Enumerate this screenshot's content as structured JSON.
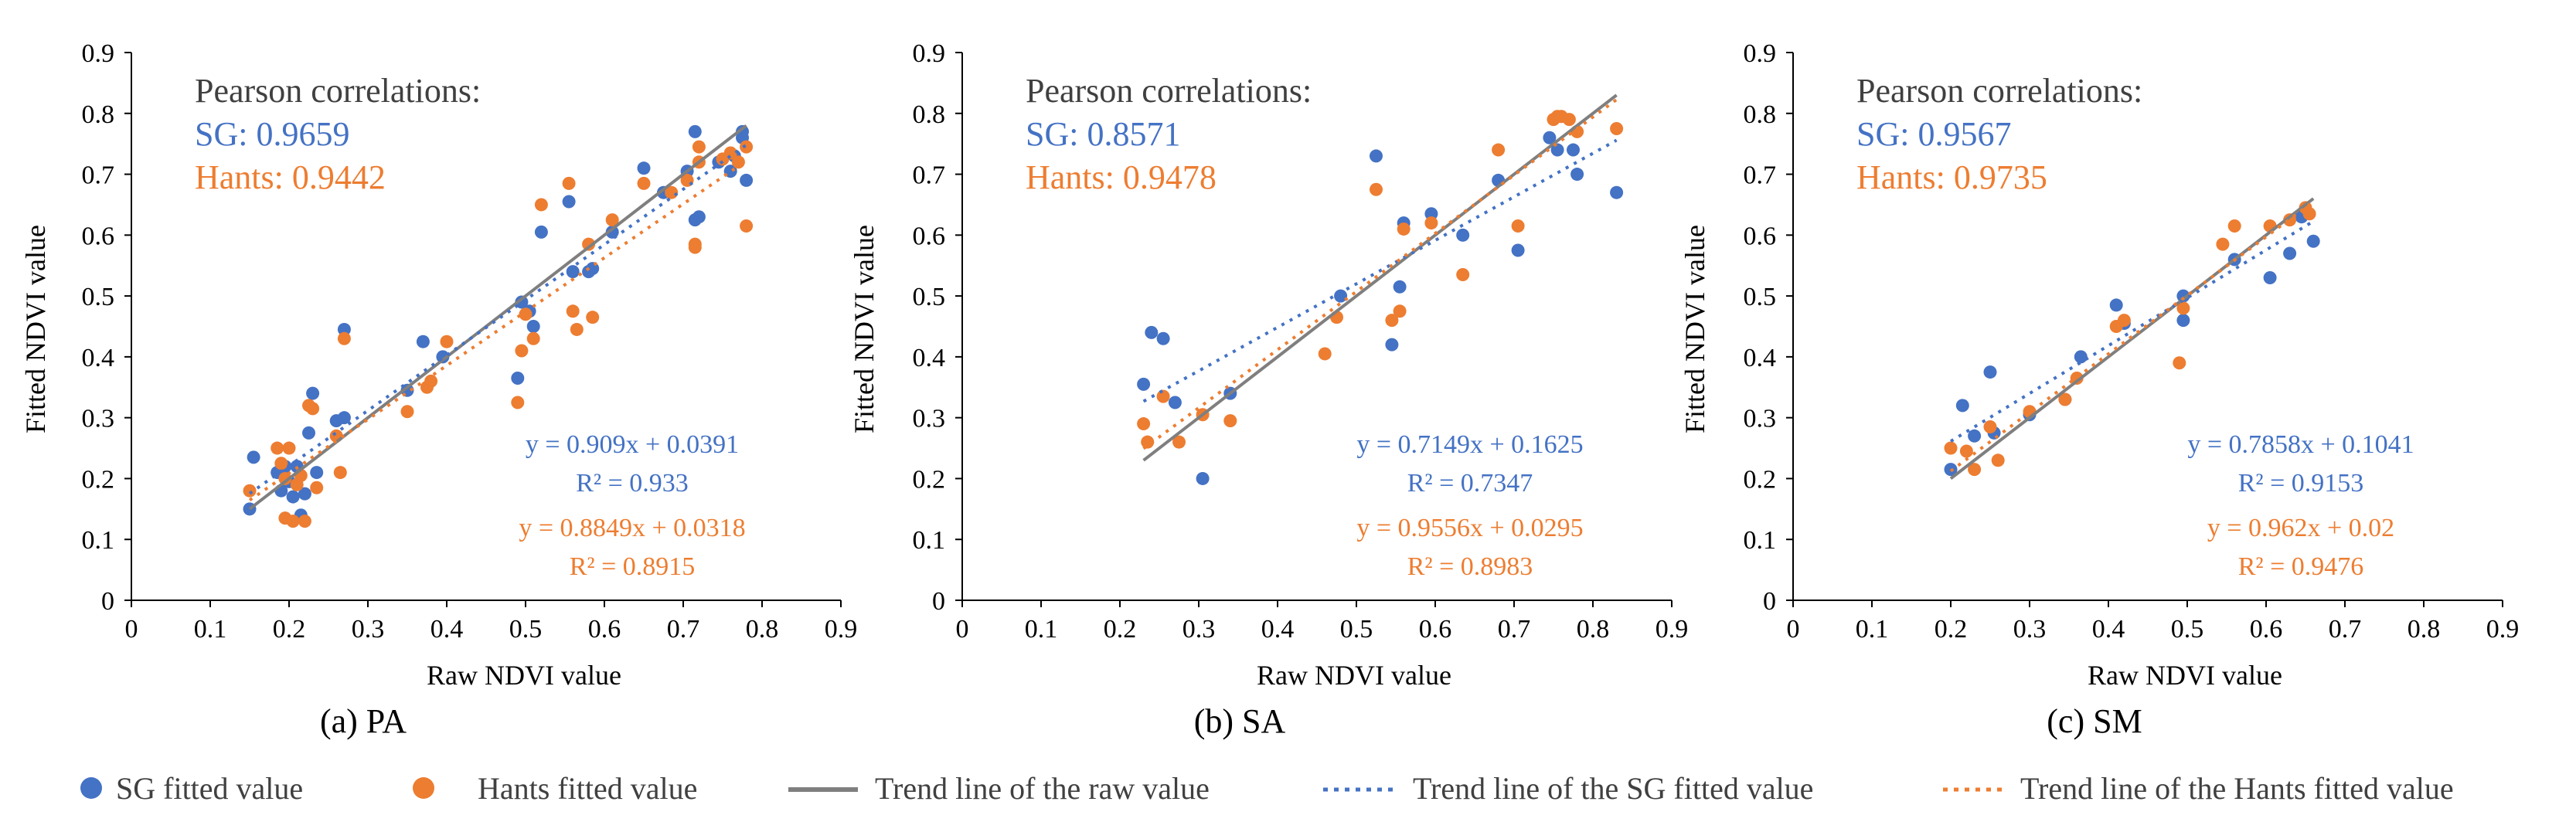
{
  "colors": {
    "sg": "#4472C4",
    "hants": "#ED7D31",
    "raw": "#7F7F7F",
    "axis": "#000000"
  },
  "legend": {
    "sg_point": "SG fitted value",
    "hants_point": "Hants fitted value",
    "raw_trend": "Trend line of the raw value",
    "sg_trend": "Trend line of the SG fitted value",
    "hants_trend": "Trend line of the Hants fitted value"
  },
  "chart_data": [
    {
      "type": "scatter",
      "title": "(a) PA",
      "xlabel": "Raw NDVI value",
      "ylabel": "Fitted NDVI value",
      "xlim": [
        0,
        0.9
      ],
      "ylim": [
        0,
        0.9
      ],
      "x_ticks": [
        "0",
        "0.1",
        "0.2",
        "0.3",
        "0.4",
        "0.5",
        "0.6",
        "0.7",
        "0.8",
        "0.9"
      ],
      "y_ticks": [
        "0",
        "0.1",
        "0.2",
        "0.3",
        "0.4",
        "0.5",
        "0.6",
        "0.7",
        "0.8",
        "0.9"
      ],
      "pearson_title": "Pearson correlations:",
      "pearson_sg": "SG: 0.9659",
      "pearson_hants": "Hants: 0.9442",
      "sg_eq": "y = 0.909x + 0.0391",
      "sg_r2": "R² = 0.933",
      "hants_eq": "y = 0.8849x + 0.0318",
      "hants_r2": "R² = 0.8915",
      "sg_trend": {
        "slope": 0.909,
        "intercept": 0.0391
      },
      "hants_trend": {
        "slope": 0.8849,
        "intercept": 0.0318
      },
      "raw_trend": {
        "slope": 1,
        "intercept": 0
      },
      "x_range": [
        0.15,
        0.78
      ],
      "series": [
        {
          "name": "SG fitted value",
          "points": [
            [
              0.15,
              0.15
            ],
            [
              0.155,
              0.235
            ],
            [
              0.185,
              0.21
            ],
            [
              0.19,
              0.18
            ],
            [
              0.195,
              0.22
            ],
            [
              0.2,
              0.195
            ],
            [
              0.205,
              0.17
            ],
            [
              0.21,
              0.22
            ],
            [
              0.215,
              0.14
            ],
            [
              0.22,
              0.175
            ],
            [
              0.225,
              0.275
            ],
            [
              0.23,
              0.34
            ],
            [
              0.235,
              0.21
            ],
            [
              0.26,
              0.295
            ],
            [
              0.27,
              0.3
            ],
            [
              0.27,
              0.445
            ],
            [
              0.35,
              0.345
            ],
            [
              0.37,
              0.425
            ],
            [
              0.395,
              0.4
            ],
            [
              0.49,
              0.365
            ],
            [
              0.495,
              0.49
            ],
            [
              0.505,
              0.475
            ],
            [
              0.51,
              0.45
            ],
            [
              0.52,
              0.605
            ],
            [
              0.555,
              0.655
            ],
            [
              0.56,
              0.54
            ],
            [
              0.58,
              0.54
            ],
            [
              0.585,
              0.545
            ],
            [
              0.61,
              0.605
            ],
            [
              0.65,
              0.71
            ],
            [
              0.675,
              0.67
            ],
            [
              0.705,
              0.705
            ],
            [
              0.715,
              0.625
            ],
            [
              0.715,
              0.77
            ],
            [
              0.72,
              0.63
            ],
            [
              0.745,
              0.72
            ],
            [
              0.76,
              0.705
            ],
            [
              0.765,
              0.73
            ],
            [
              0.775,
              0.76
            ],
            [
              0.775,
              0.77
            ],
            [
              0.78,
              0.69
            ]
          ]
        },
        {
          "name": "Hants fitted value",
          "points": [
            [
              0.15,
              0.18
            ],
            [
              0.185,
              0.25
            ],
            [
              0.19,
              0.225
            ],
            [
              0.195,
              0.2
            ],
            [
              0.195,
              0.135
            ],
            [
              0.2,
              0.25
            ],
            [
              0.205,
              0.13
            ],
            [
              0.21,
              0.19
            ],
            [
              0.215,
              0.205
            ],
            [
              0.22,
              0.13
            ],
            [
              0.225,
              0.32
            ],
            [
              0.23,
              0.315
            ],
            [
              0.235,
              0.185
            ],
            [
              0.26,
              0.27
            ],
            [
              0.265,
              0.21
            ],
            [
              0.27,
              0.43
            ],
            [
              0.35,
              0.31
            ],
            [
              0.375,
              0.35
            ],
            [
              0.38,
              0.36
            ],
            [
              0.4,
              0.425
            ],
            [
              0.49,
              0.325
            ],
            [
              0.495,
              0.41
            ],
            [
              0.5,
              0.47
            ],
            [
              0.51,
              0.43
            ],
            [
              0.52,
              0.65
            ],
            [
              0.555,
              0.685
            ],
            [
              0.56,
              0.475
            ],
            [
              0.565,
              0.445
            ],
            [
              0.58,
              0.585
            ],
            [
              0.585,
              0.465
            ],
            [
              0.61,
              0.625
            ],
            [
              0.65,
              0.685
            ],
            [
              0.685,
              0.67
            ],
            [
              0.705,
              0.69
            ],
            [
              0.715,
              0.58
            ],
            [
              0.715,
              0.585
            ],
            [
              0.72,
              0.72
            ],
            [
              0.72,
              0.745
            ],
            [
              0.75,
              0.725
            ],
            [
              0.76,
              0.735
            ],
            [
              0.77,
              0.72
            ],
            [
              0.78,
              0.615
            ],
            [
              0.78,
              0.745
            ]
          ]
        }
      ]
    },
    {
      "type": "scatter",
      "title": "(b) SA",
      "xlabel": "Raw NDVI value",
      "ylabel": "Fitted NDVI value",
      "xlim": [
        0,
        0.9
      ],
      "ylim": [
        0,
        0.9
      ],
      "x_ticks": [
        "0",
        "0.1",
        "0.2",
        "0.3",
        "0.4",
        "0.5",
        "0.6",
        "0.7",
        "0.8",
        "0.9"
      ],
      "y_ticks": [
        "0",
        "0.1",
        "0.2",
        "0.3",
        "0.4",
        "0.5",
        "0.6",
        "0.7",
        "0.8",
        "0.9"
      ],
      "pearson_title": "Pearson correlations:",
      "pearson_sg": "SG: 0.8571",
      "pearson_hants": "Hants: 0.9478",
      "sg_eq": "y = 0.7149x + 0.1625",
      "sg_r2": "R² = 0.7347",
      "hants_eq": "y = 0.9556x + 0.0295",
      "hants_r2": "R² = 0.8983",
      "sg_trend": {
        "slope": 0.7149,
        "intercept": 0.1625
      },
      "hants_trend": {
        "slope": 0.9556,
        "intercept": 0.0295
      },
      "raw_trend": {
        "slope": 1,
        "intercept": 0
      },
      "x_range": [
        0.23,
        0.83
      ],
      "series": [
        {
          "name": "SG fitted value",
          "points": [
            [
              0.23,
              0.355
            ],
            [
              0.24,
              0.44
            ],
            [
              0.255,
              0.43
            ],
            [
              0.27,
              0.325
            ],
            [
              0.305,
              0.2
            ],
            [
              0.34,
              0.34
            ],
            [
              0.48,
              0.5
            ],
            [
              0.525,
              0.73
            ],
            [
              0.545,
              0.42
            ],
            [
              0.555,
              0.515
            ],
            [
              0.56,
              0.62
            ],
            [
              0.595,
              0.635
            ],
            [
              0.635,
              0.6
            ],
            [
              0.68,
              0.69
            ],
            [
              0.705,
              0.575
            ],
            [
              0.745,
              0.76
            ],
            [
              0.755,
              0.74
            ],
            [
              0.775,
              0.74
            ],
            [
              0.78,
              0.7
            ],
            [
              0.83,
              0.67
            ]
          ]
        },
        {
          "name": "Hants fitted value",
          "points": [
            [
              0.23,
              0.29
            ],
            [
              0.235,
              0.26
            ],
            [
              0.255,
              0.335
            ],
            [
              0.275,
              0.26
            ],
            [
              0.305,
              0.305
            ],
            [
              0.34,
              0.295
            ],
            [
              0.46,
              0.405
            ],
            [
              0.475,
              0.465
            ],
            [
              0.525,
              0.675
            ],
            [
              0.545,
              0.46
            ],
            [
              0.555,
              0.475
            ],
            [
              0.56,
              0.61
            ],
            [
              0.595,
              0.62
            ],
            [
              0.635,
              0.535
            ],
            [
              0.68,
              0.74
            ],
            [
              0.705,
              0.615
            ],
            [
              0.75,
              0.79
            ],
            [
              0.755,
              0.795
            ],
            [
              0.76,
              0.795
            ],
            [
              0.77,
              0.79
            ],
            [
              0.78,
              0.77
            ],
            [
              0.83,
              0.775
            ]
          ]
        }
      ]
    },
    {
      "type": "scatter",
      "title": "(c) SM",
      "xlabel": "Raw NDVI value",
      "ylabel": "Fitted NDVI value",
      "xlim": [
        0,
        0.9
      ],
      "ylim": [
        0,
        0.9
      ],
      "x_ticks": [
        "0",
        "0.1",
        "0.2",
        "0.3",
        "0.4",
        "0.5",
        "0.6",
        "0.7",
        "0.8",
        "0.9"
      ],
      "y_ticks": [
        "0",
        "0.1",
        "0.2",
        "0.3",
        "0.4",
        "0.5",
        "0.6",
        "0.7",
        "0.8",
        "0.9"
      ],
      "pearson_title": "Pearson correlations:",
      "pearson_sg": "SG: 0.9567",
      "pearson_hants": "Hants: 0.9735",
      "sg_eq": "y = 0.7858x + 0.1041",
      "sg_r2": "R² = 0.9153",
      "hants_eq": "y = 0.962x + 0.02",
      "hants_r2": "R² = 0.9476",
      "sg_trend": {
        "slope": 0.7858,
        "intercept": 0.1041
      },
      "hants_trend": {
        "slope": 0.962,
        "intercept": 0.02
      },
      "raw_trend": {
        "slope": 1,
        "intercept": 0
      },
      "x_range": [
        0.2,
        0.66
      ],
      "series": [
        {
          "name": "SG fitted value",
          "points": [
            [
              0.2,
              0.215
            ],
            [
              0.215,
              0.32
            ],
            [
              0.23,
              0.27
            ],
            [
              0.25,
              0.375
            ],
            [
              0.255,
              0.275
            ],
            [
              0.3,
              0.305
            ],
            [
              0.345,
              0.33
            ],
            [
              0.365,
              0.4
            ],
            [
              0.41,
              0.485
            ],
            [
              0.42,
              0.455
            ],
            [
              0.495,
              0.46
            ],
            [
              0.495,
              0.5
            ],
            [
              0.56,
              0.56
            ],
            [
              0.605,
              0.53
            ],
            [
              0.63,
              0.57
            ],
            [
              0.645,
              0.63
            ],
            [
              0.66,
              0.59
            ]
          ]
        },
        {
          "name": "Hants fitted value",
          "points": [
            [
              0.2,
              0.25
            ],
            [
              0.22,
              0.245
            ],
            [
              0.23,
              0.215
            ],
            [
              0.25,
              0.285
            ],
            [
              0.26,
              0.23
            ],
            [
              0.3,
              0.31
            ],
            [
              0.345,
              0.33
            ],
            [
              0.36,
              0.365
            ],
            [
              0.41,
              0.45
            ],
            [
              0.42,
              0.46
            ],
            [
              0.49,
              0.39
            ],
            [
              0.495,
              0.48
            ],
            [
              0.545,
              0.585
            ],
            [
              0.56,
              0.615
            ],
            [
              0.605,
              0.615
            ],
            [
              0.63,
              0.625
            ],
            [
              0.65,
              0.645
            ],
            [
              0.655,
              0.635
            ]
          ]
        }
      ]
    }
  ]
}
